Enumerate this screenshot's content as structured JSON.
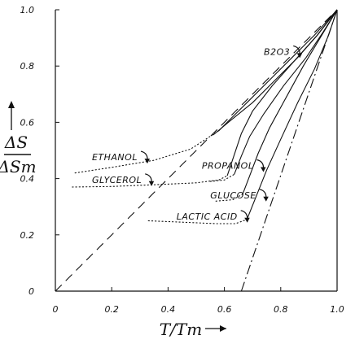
{
  "chart_data": {
    "type": "line",
    "title": "",
    "xlabel": "T/Tm",
    "ylabel_numerator": "ΔS",
    "ylabel_denominator": "ΔSm",
    "xlim": [
      0,
      1.0
    ],
    "ylim": [
      0,
      1.0
    ],
    "x_ticks": [
      "0",
      "0.2",
      "0.4",
      "0.6",
      "0.8",
      "1.0"
    ],
    "y_ticks": [
      "0",
      "0.2",
      "0.4",
      "0.6",
      "0.8",
      "1.0"
    ],
    "x_tick_values": [
      0,
      0.2,
      0.4,
      0.6,
      0.8,
      1.0
    ],
    "y_tick_values": [
      0,
      0.2,
      0.4,
      0.6,
      0.8,
      1.0
    ],
    "grid": false,
    "legend": "none",
    "series": [
      {
        "id": "diagonal",
        "style": "dashed",
        "x": [
          0,
          1.0
        ],
        "y": [
          0,
          1.0
        ]
      },
      {
        "id": "lower-limit",
        "style": "dashdot",
        "x": [
          0.66,
          1.0
        ],
        "y": [
          0,
          1.0
        ]
      },
      {
        "id": "b2o3",
        "name": "B2O3",
        "style": "solid",
        "x": [
          0.56,
          0.62,
          0.7,
          0.78,
          0.86,
          0.93,
          1.0
        ],
        "y": [
          0.555,
          0.605,
          0.67,
          0.75,
          0.83,
          0.91,
          1.0
        ]
      },
      {
        "id": "ethanol",
        "name": "Ethanol",
        "style": "solid",
        "glass_x": [
          0.07,
          0.2,
          0.35,
          0.48,
          0.58
        ],
        "glass_y": [
          0.42,
          0.44,
          0.465,
          0.505,
          0.57
        ],
        "x": [
          0.58,
          0.62,
          0.68,
          0.76,
          0.84,
          0.92,
          1.0
        ],
        "y": [
          0.57,
          0.61,
          0.67,
          0.75,
          0.83,
          0.91,
          1.0
        ]
      },
      {
        "id": "glycerol",
        "name": "Glycerol",
        "style": "solid",
        "glass_x": [
          0.06,
          0.2,
          0.35,
          0.5,
          0.58,
          0.61
        ],
        "glass_y": [
          0.37,
          0.372,
          0.378,
          0.385,
          0.395,
          0.41
        ],
        "x": [
          0.61,
          0.63,
          0.66,
          0.7,
          0.77,
          0.85,
          0.93,
          1.0
        ],
        "y": [
          0.41,
          0.47,
          0.56,
          0.64,
          0.73,
          0.82,
          0.91,
          1.0
        ]
      },
      {
        "id": "propanol",
        "name": "Propanol",
        "style": "solid",
        "glass_x": [
          0.55,
          0.6,
          0.635
        ],
        "glass_y": [
          0.39,
          0.395,
          0.415
        ],
        "x": [
          0.635,
          0.66,
          0.69,
          0.74,
          0.81,
          0.89,
          0.95,
          1.0
        ],
        "y": [
          0.415,
          0.48,
          0.55,
          0.63,
          0.73,
          0.83,
          0.92,
          1.0
        ]
      },
      {
        "id": "glucose",
        "name": "Glucose",
        "style": "solid",
        "glass_x": [
          0.57,
          0.63,
          0.665
        ],
        "glass_y": [
          0.32,
          0.325,
          0.345
        ],
        "x": [
          0.665,
          0.69,
          0.72,
          0.76,
          0.82,
          0.88,
          0.94,
          1.0
        ],
        "y": [
          0.345,
          0.41,
          0.49,
          0.58,
          0.69,
          0.8,
          0.9,
          1.0
        ]
      },
      {
        "id": "lactic-acid",
        "name": "Lactic Acid",
        "style": "solid",
        "glass_x": [
          0.33,
          0.45,
          0.57,
          0.64,
          0.68
        ],
        "glass_y": [
          0.25,
          0.245,
          0.24,
          0.24,
          0.255
        ],
        "x": [
          0.68,
          0.71,
          0.75,
          0.8,
          0.86,
          0.92,
          0.97,
          1.0
        ],
        "y": [
          0.255,
          0.33,
          0.43,
          0.54,
          0.67,
          0.79,
          0.91,
          1.0
        ]
      }
    ],
    "annotations": [
      {
        "id": "b2o3",
        "text": "B2O3",
        "x": 0.74,
        "y": 0.84
      },
      {
        "id": "ethanol",
        "text": "ETHANOL",
        "x": 0.13,
        "y": 0.465
      },
      {
        "id": "glycerol",
        "text": "GLYCEROL",
        "x": 0.13,
        "y": 0.385
      },
      {
        "id": "propanol",
        "text": "PROPANOL",
        "x": 0.52,
        "y": 0.435
      },
      {
        "id": "glucose",
        "text": "GLUCOSE",
        "x": 0.55,
        "y": 0.33
      },
      {
        "id": "lactic-acid",
        "text": "LACTIC ACID",
        "x": 0.43,
        "y": 0.255
      }
    ]
  }
}
